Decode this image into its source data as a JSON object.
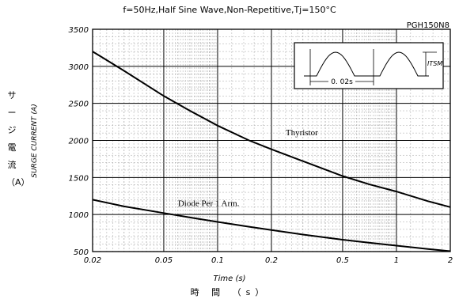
{
  "title": "f=50Hz,Half Sine Wave,Non-Repetitive,Tj=150°C",
  "part_number": "PGH150N8",
  "chart_data": {
    "type": "line",
    "x_scale": "log",
    "y_scale": "linear",
    "xlim": [
      0.02,
      2
    ],
    "ylim": [
      500,
      3500
    ],
    "grid": true,
    "ylabel_en": "SURGE CURRENT (A)",
    "ylabel_jp": [
      "サ",
      "ー",
      "ジ",
      "電",
      "流",
      "（A）"
    ],
    "xlabel_en": "Time (s)",
    "xlabel_jp": "時 間 （s）",
    "x_ticks": [
      0.02,
      0.05,
      0.1,
      0.2,
      0.5,
      1,
      2
    ],
    "x_tick_labels": [
      "0.02",
      "0.05",
      "0.1",
      "0.2",
      "0.5",
      "1",
      "2"
    ],
    "y_ticks": [
      500,
      1000,
      1500,
      2000,
      2500,
      3000,
      3500
    ],
    "y_tick_labels": [
      "500",
      "1000",
      "1500",
      "2000",
      "2500",
      "3000",
      "3500"
    ],
    "series": [
      {
        "name": "Thyristor",
        "x": [
          0.02,
          0.03,
          0.05,
          0.07,
          0.1,
          0.15,
          0.2,
          0.3,
          0.5,
          0.7,
          1,
          1.5,
          2
        ],
        "y": [
          3200,
          2940,
          2600,
          2400,
          2200,
          2000,
          1880,
          1720,
          1520,
          1410,
          1310,
          1180,
          1100
        ]
      },
      {
        "name": "Diode Per 1 Arm.",
        "x": [
          0.02,
          0.03,
          0.05,
          0.07,
          0.1,
          0.15,
          0.2,
          0.3,
          0.5,
          0.7,
          1,
          1.5,
          2
        ],
        "y": [
          1200,
          1110,
          1020,
          960,
          900,
          835,
          790,
          730,
          660,
          620,
          580,
          535,
          505
        ]
      }
    ],
    "annotations": [
      {
        "text": "Thyristor",
        "x": 0.24,
        "y": 2070
      },
      {
        "text": "Diode Per 1 Arm.",
        "x": 0.06,
        "y": 1115
      }
    ],
    "inset": {
      "period_label": "0. 02s",
      "current_label": "ITSM"
    }
  }
}
